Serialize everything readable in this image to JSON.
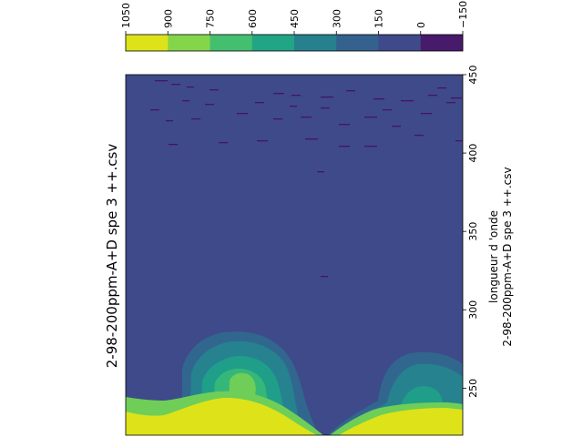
{
  "chart_data": {
    "type": "heatmap",
    "title": "2-98-200ppm-A+D spe 3 ++.csv",
    "ylabel": "longueur d 'onde",
    "ylabel2": "2-98-200ppm-A+D spe 3 ++.csv",
    "ylim": [
      220,
      450
    ],
    "yticks": [
      250,
      300,
      350,
      400,
      450
    ],
    "colorbar": {
      "levels": [
        -150,
        0,
        150,
        300,
        450,
        600,
        750,
        900,
        1050
      ],
      "tick_labels": [
        "−150",
        "0",
        "150",
        "300",
        "450",
        "600",
        "750",
        "900",
        "1050"
      ],
      "colors": [
        "#471365",
        "#3e4a89",
        "#31678e",
        "#26828e",
        "#1f9e89",
        "#35b779",
        "#6ece58",
        "#b5de2b",
        "#dde318"
      ]
    },
    "regions": [
      {
        "band": 0,
        "value": -75,
        "description": "scattered streaks",
        "color": "#471365"
      },
      {
        "band": 1,
        "value": 75,
        "description": "background",
        "color": "#3e4a89"
      },
      {
        "band": 2,
        "value": 225,
        "description": "halo",
        "color": "#31678e"
      },
      {
        "band": 3,
        "value": 375,
        "description": "halo",
        "color": "#26828e"
      },
      {
        "band": 4,
        "value": 525,
        "description": "halo",
        "color": "#1f9e89"
      },
      {
        "band": 5,
        "value": 675,
        "description": "halo",
        "color": "#35b779"
      },
      {
        "band": 6,
        "value": 825,
        "description": "halo",
        "color": "#6ece58"
      },
      {
        "band": 7,
        "value": 975,
        "description": "peak",
        "color": "#dde318"
      }
    ]
  }
}
